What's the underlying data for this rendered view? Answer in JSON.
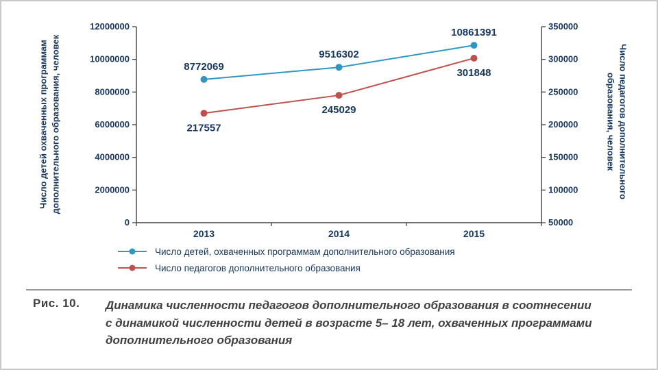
{
  "figure": {
    "label": "Рис. 10.",
    "caption_lines": [
      "Динамика численности педагогов дополнительного образования в соотнесении",
      "с динамикой численности детей в возрасте 5– 18 лет, охваченных программами",
      "дополнительного образования"
    ]
  },
  "chart_data": {
    "type": "line",
    "categories": [
      "2013",
      "2014",
      "2015"
    ],
    "series": [
      {
        "name": "Число детей, охваченных программам дополнительного образования",
        "axis": "left",
        "color": "#2e97c5",
        "values": [
          8772069,
          9516302,
          10861391
        ],
        "label_position": "above"
      },
      {
        "name": "Число педагогов дополнительного образования",
        "axis": "right",
        "color": "#c0504d",
        "values": [
          217557,
          245029,
          301848
        ],
        "label_position": "below"
      }
    ],
    "left_axis": {
      "title": "Число детей охваченных программам дополнительного образования, человек",
      "title_lines": [
        "Число детей охваченных программам",
        "дополнительного образования, человек"
      ],
      "min": 0,
      "max": 12000000,
      "step": 2000000,
      "ticks": [
        "0",
        "2000000",
        "4000000",
        "6000000",
        "8000000",
        "10000000",
        "12000000"
      ]
    },
    "right_axis": {
      "title": "Число педагогов дополнительного образования, человек",
      "title_lines": [
        "Число педагогов дополнительного",
        "образования, человек"
      ],
      "min": 50000,
      "max": 350000,
      "step": 50000,
      "ticks": [
        "50000",
        "100000",
        "150000",
        "200000",
        "250000",
        "300000",
        "350000"
      ]
    },
    "legend_position": "bottom-left",
    "grid": false,
    "text_color": "#17365d",
    "axis_color": "#404040"
  }
}
